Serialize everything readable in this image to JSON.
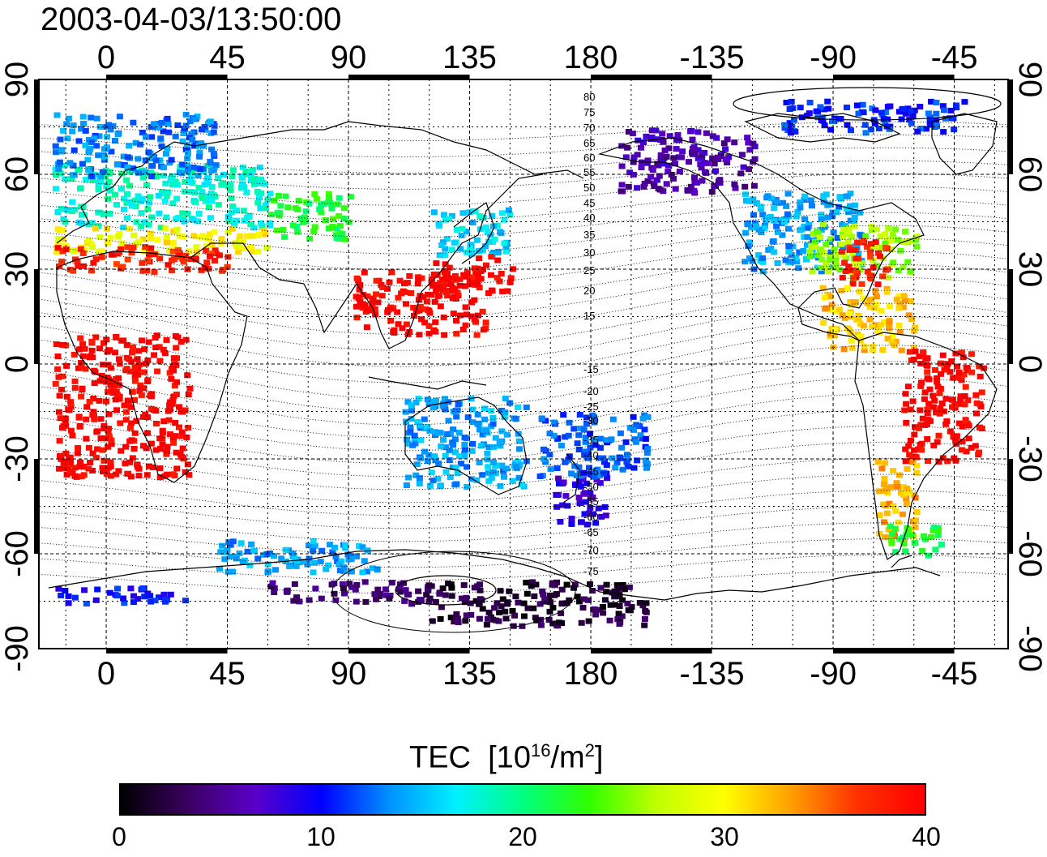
{
  "title": "2003-04-03/13:50:00",
  "map": {
    "top_lon_labels": [
      "0",
      "45",
      "90",
      "135",
      "180",
      "-135",
      "-90",
      "-45"
    ],
    "bottom_lon_labels": [
      "0",
      "45",
      "90",
      "135",
      "180",
      "-135",
      "-90",
      "-45"
    ],
    "left_lat_labels": [
      "90",
      "60",
      "30",
      "0",
      "-30",
      "-60",
      "-90"
    ],
    "right_lat_labels": [
      "90",
      "60",
      "30",
      "0",
      "-30",
      "-60",
      "-90"
    ],
    "magnetic_latitude_labels": [
      "80",
      "75",
      "70",
      "65",
      "60",
      "55",
      "50",
      "45",
      "40",
      "35",
      "30",
      "25",
      "20",
      "15",
      "-15",
      "-20",
      "-25",
      "-30",
      "-35",
      "-40",
      "-45",
      "-50",
      "-55",
      "-60",
      "-65",
      "-70",
      "-75"
    ],
    "lon_min": -25,
    "lon_max": 335,
    "lat_min": -90,
    "lat_max": 90
  },
  "colorbar": {
    "label": "TEC",
    "unit_base": "[10",
    "unit_exp": "16",
    "unit_mid": "/m",
    "unit_exp2": "2",
    "unit_end": "]",
    "min": 0,
    "max": 40,
    "ticks": [
      "0",
      "10",
      "20",
      "30",
      "40"
    ],
    "colormap": [
      "#000000",
      "#3b0060",
      "#5a00c8",
      "#0000ff",
      "#0090ff",
      "#00f0ff",
      "#00ff80",
      "#30ff00",
      "#c0ff00",
      "#ffff00",
      "#ffa000",
      "#ff3000",
      "#ff0000"
    ]
  },
  "colors": {
    "line": "#000000",
    "grid": "#000000",
    "background": "#ffffff"
  },
  "chart_data": {
    "type": "heatmap",
    "x_axis": "geographic longitude",
    "y_axis": "geographic latitude",
    "value": "TEC",
    "vmin": 0,
    "vmax": 40,
    "regions": [
      {
        "lon": [
          -20,
          60
        ],
        "lat": [
          44,
          64
        ],
        "tec": 18
      },
      {
        "lon": [
          -20,
          60
        ],
        "lat": [
          36,
          44
        ],
        "tec": 30
      },
      {
        "lon": [
          -20,
          45
        ],
        "lat": [
          30,
          38
        ],
        "tec": 38
      },
      {
        "lon": [
          -20,
          40
        ],
        "lat": [
          60,
          80
        ],
        "tec": 13
      },
      {
        "lon": [
          60,
          90
        ],
        "lat": [
          40,
          55
        ],
        "tec": 22
      },
      {
        "lon": [
          120,
          150
        ],
        "lat": [
          35,
          50
        ],
        "tec": 16
      },
      {
        "lon": [
          120,
          150
        ],
        "lat": [
          22,
          35
        ],
        "tec": 40
      },
      {
        "lon": [
          90,
          140
        ],
        "lat": [
          10,
          30
        ],
        "tec": 40
      },
      {
        "lon": [
          -20,
          30
        ],
        "lat": [
          -35,
          10
        ],
        "tec": 40
      },
      {
        "lon": [
          110,
          155
        ],
        "lat": [
          -38,
          -10
        ],
        "tec": 14
      },
      {
        "lon": [
          165,
          185
        ],
        "lat": [
          -50,
          -35
        ],
        "tec": 8
      },
      {
        "lon": [
          160,
          200
        ],
        "lat": [
          -35,
          -15
        ],
        "tec": 12
      },
      {
        "lon": [
          190,
          240
        ],
        "lat": [
          55,
          75
        ],
        "tec": 6
      },
      {
        "lon": [
          235,
          280
        ],
        "lat": [
          30,
          55
        ],
        "tec": 14
      },
      {
        "lon": [
          260,
          300
        ],
        "lat": [
          28,
          45
        ],
        "tec": 26
      },
      {
        "lon": [
          272,
          290
        ],
        "lat": [
          25,
          40
        ],
        "tec": 38
      },
      {
        "lon": [
          265,
          300
        ],
        "lat": [
          5,
          25
        ],
        "tec": 32
      },
      {
        "lon": [
          295,
          325
        ],
        "lat": [
          -30,
          5
        ],
        "tec": 40
      },
      {
        "lon": [
          285,
          300
        ],
        "lat": [
          -55,
          -30
        ],
        "tec": 33
      },
      {
        "lon": [
          290,
          310
        ],
        "lat": [
          -60,
          -50
        ],
        "tec": 22
      },
      {
        "lon": [
          40,
          100
        ],
        "lat": [
          -65,
          -55
        ],
        "tec": 14
      },
      {
        "lon": [
          -20,
          30
        ],
        "lat": [
          -75,
          -70
        ],
        "tec": 10
      },
      {
        "lon": [
          60,
          120
        ],
        "lat": [
          -75,
          -68
        ],
        "tec": 4
      },
      {
        "lon": [
          120,
          200
        ],
        "lat": [
          -82,
          -68
        ],
        "tec": 2
      },
      {
        "lon": [
          250,
          320
        ],
        "lat": [
          74,
          84
        ],
        "tec": 11
      }
    ]
  }
}
